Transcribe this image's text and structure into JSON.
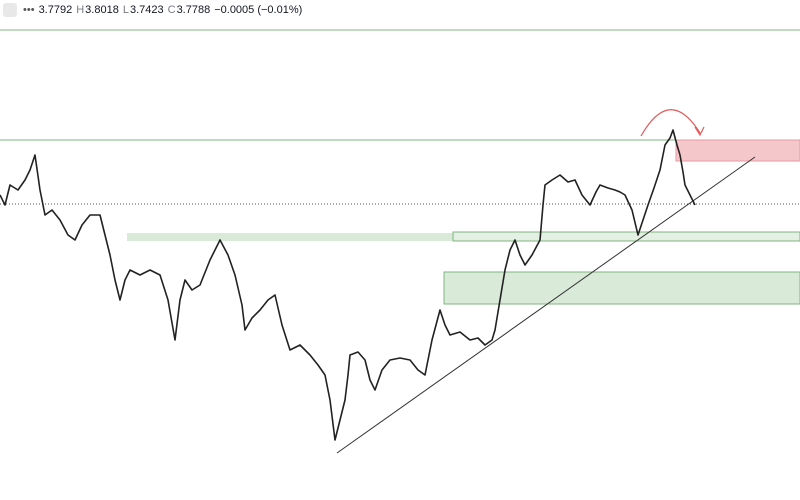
{
  "header": {
    "open": "3.7792",
    "fields": [
      {
        "label": "H",
        "value": "3.8018"
      },
      {
        "label": "L",
        "value": "3.7423"
      },
      {
        "label": "C",
        "value": "3.7788"
      }
    ],
    "change": "−0.0005 (−0.01%)"
  }
}
